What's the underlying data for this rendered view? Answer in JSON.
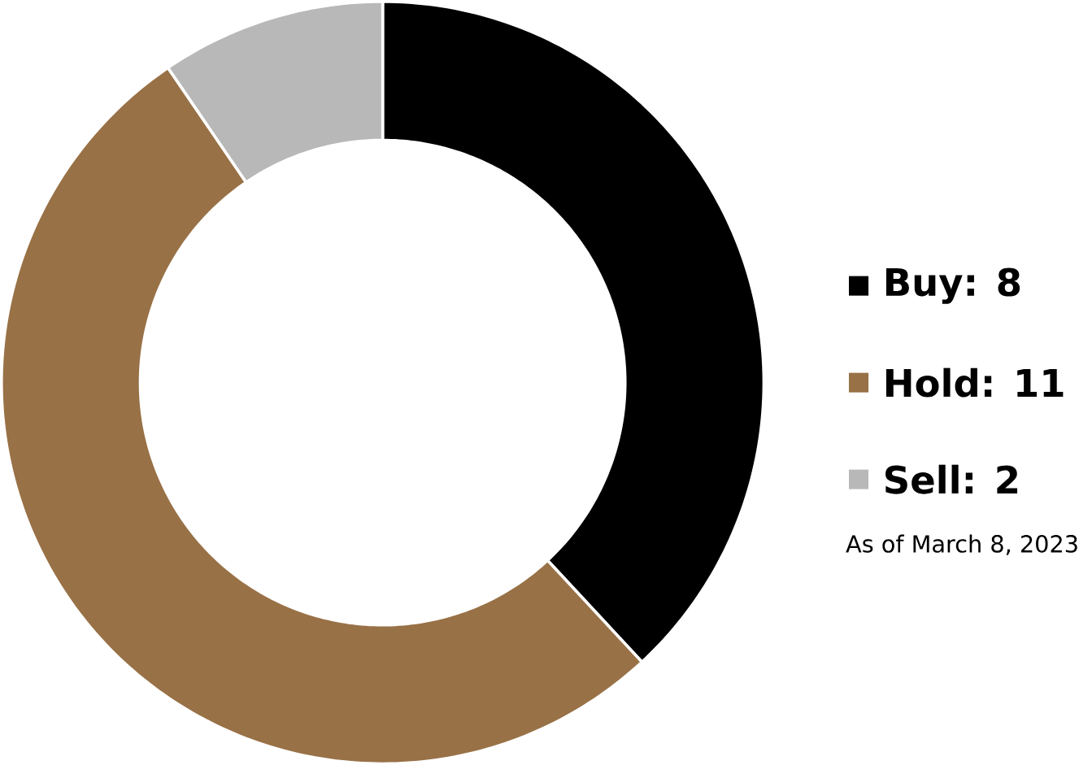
{
  "chart_data": {
    "type": "donut",
    "categories": [
      "Buy: 8",
      "Hold: 11",
      "Sell: 2"
    ],
    "values": [
      8,
      11,
      2
    ],
    "colors": [
      "#000000",
      "#987146",
      "#b8b8b8"
    ],
    "legend": "right",
    "annotations": [
      "As of March 8, 2023"
    ]
  }
}
